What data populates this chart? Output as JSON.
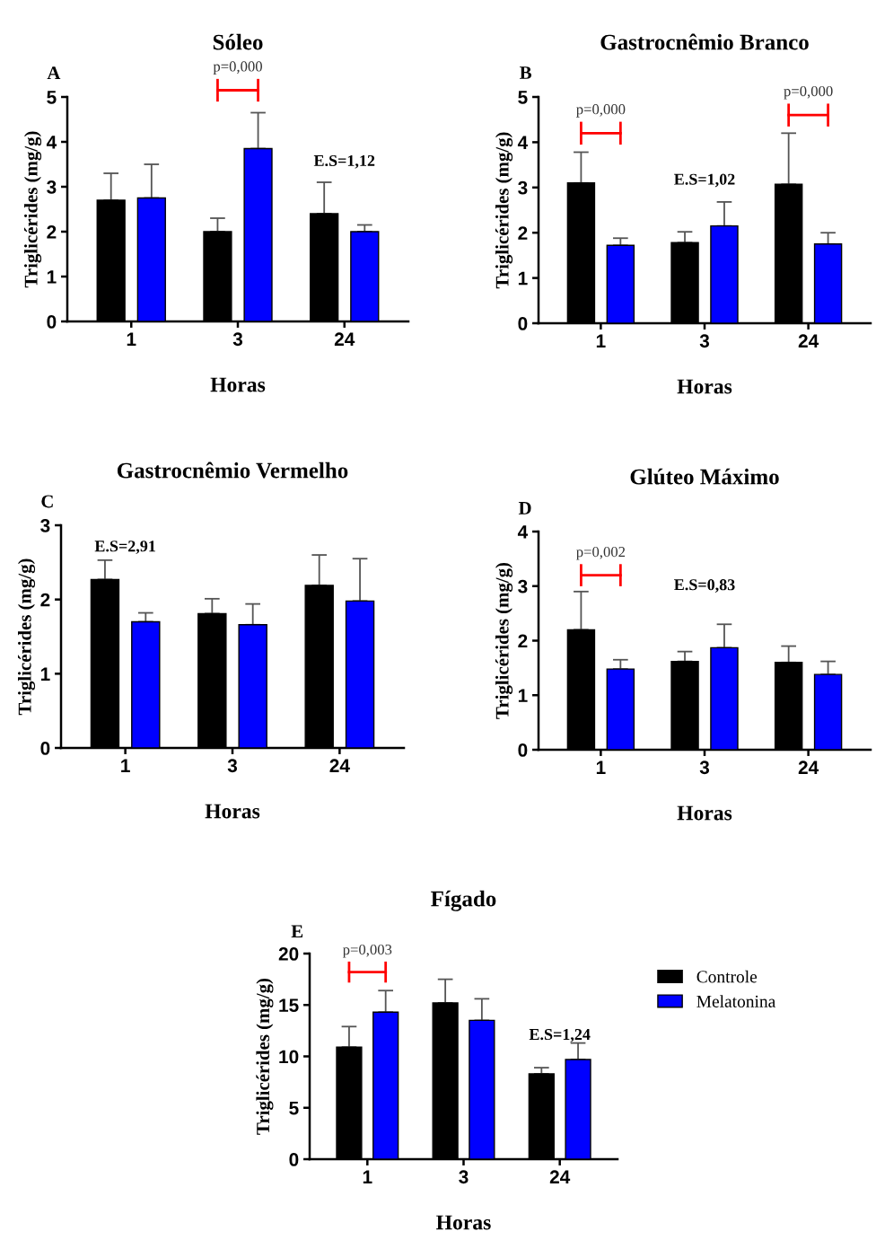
{
  "chart_data": [
    {
      "type": "bar",
      "title": "Sóleo",
      "xlabel": "Horas",
      "ylabel": "Triglicérides (mg/g)",
      "categories": [
        "1",
        "3",
        "24"
      ],
      "ylim": [
        0,
        5
      ],
      "yticks": [
        0,
        1,
        2,
        3,
        4,
        5
      ],
      "series": [
        {
          "color": "#000000",
          "values": [
            2.7,
            2.0,
            2.4
          ],
          "errors": [
            [
              2.7,
              3.3
            ],
            [
              2.0,
              2.3
            ],
            [
              2.4,
              3.1
            ]
          ]
        },
        {
          "color": "#0000ff",
          "values": [
            2.75,
            3.85,
            2.0
          ],
          "errors": [
            [
              2.75,
              3.5
            ],
            [
              3.85,
              4.65
            ],
            [
              2.0,
              2.15
            ]
          ]
        }
      ],
      "annotations": [
        "A",
        "E.S=1,12",
        "p=0,000"
      ]
    },
    {
      "type": "bar",
      "title": "Gastrocnêmio Branco",
      "xlabel": "Horas",
      "ylabel": "Triglicérides (mg/g)",
      "categories": [
        "1",
        "3",
        "24"
      ],
      "ylim": [
        0,
        5
      ],
      "yticks": [
        0,
        1,
        2,
        3,
        4,
        5
      ],
      "series": [
        {
          "color": "#000000",
          "values": [
            3.1,
            1.78,
            3.07
          ],
          "errors": [
            [
              3.1,
              3.78
            ],
            [
              1.78,
              2.02
            ],
            [
              3.07,
              4.2
            ]
          ]
        },
        {
          "color": "#0000ff",
          "values": [
            1.72,
            2.15,
            1.75
          ],
          "errors": [
            [
              1.72,
              1.88
            ],
            [
              2.15,
              2.68
            ],
            [
              1.75,
              2.0
            ]
          ]
        }
      ],
      "annotations": [
        "B",
        "E.S=1,02",
        "p=0,000",
        "p=0,000"
      ]
    },
    {
      "type": "bar",
      "title": "Gastrocnêmio Vermelho",
      "xlabel": "Horas",
      "ylabel": "Triglicérides (mg/g)",
      "categories": [
        "1",
        "3",
        "24"
      ],
      "ylim": [
        0,
        3
      ],
      "yticks": [
        0,
        1,
        2,
        3
      ],
      "series": [
        {
          "color": "#000000",
          "values": [
            2.27,
            1.81,
            2.19
          ],
          "errors": [
            [
              2.27,
              2.53
            ],
            [
              1.81,
              2.01
            ],
            [
              2.19,
              2.6
            ]
          ]
        },
        {
          "color": "#0000ff",
          "values": [
            1.7,
            1.66,
            1.98
          ],
          "errors": [
            [
              1.7,
              1.82
            ],
            [
              1.66,
              1.94
            ],
            [
              1.98,
              2.55
            ]
          ]
        }
      ],
      "annotations": [
        "C",
        "E.S=2,91"
      ]
    },
    {
      "type": "bar",
      "title": "Glúteo Máximo",
      "xlabel": "Horas",
      "ylabel": "Triglicérides (mg/g)",
      "categories": [
        "1",
        "3",
        "24"
      ],
      "ylim": [
        0,
        4
      ],
      "yticks": [
        0,
        1,
        2,
        3,
        4
      ],
      "series": [
        {
          "color": "#000000",
          "values": [
            2.2,
            1.62,
            1.6
          ],
          "errors": [
            [
              2.2,
              2.9
            ],
            [
              1.62,
              1.8
            ],
            [
              1.6,
              1.9
            ]
          ]
        },
        {
          "color": "#0000ff",
          "values": [
            1.48,
            1.87,
            1.38
          ],
          "errors": [
            [
              1.48,
              1.65
            ],
            [
              1.87,
              2.3
            ],
            [
              1.38,
              1.62
            ]
          ]
        }
      ],
      "annotations": [
        "D",
        "E.S=0,83",
        "p=0,002"
      ]
    },
    {
      "type": "bar",
      "title": "Fígado",
      "xlabel": "Horas",
      "ylabel": "Triglicérides (mg/g)",
      "categories": [
        "1",
        "3",
        "24"
      ],
      "ylim": [
        0,
        20
      ],
      "yticks": [
        0,
        5,
        10,
        15,
        20
      ],
      "legend": "right",
      "series": [
        {
          "name": "Controle",
          "color": "#000000",
          "values": [
            10.9,
            15.2,
            8.3
          ],
          "errors": [
            [
              10.9,
              12.9
            ],
            [
              15.2,
              17.5
            ],
            [
              8.3,
              8.9
            ]
          ]
        },
        {
          "name": "Melatonina",
          "color": "#0000ff",
          "values": [
            14.3,
            13.5,
            9.7
          ],
          "errors": [
            [
              14.3,
              16.4
            ],
            [
              13.5,
              15.6
            ],
            [
              9.7,
              11.3
            ]
          ]
        }
      ],
      "annotations": [
        "E",
        "E.S=1,24",
        "p=0,003"
      ]
    }
  ]
}
